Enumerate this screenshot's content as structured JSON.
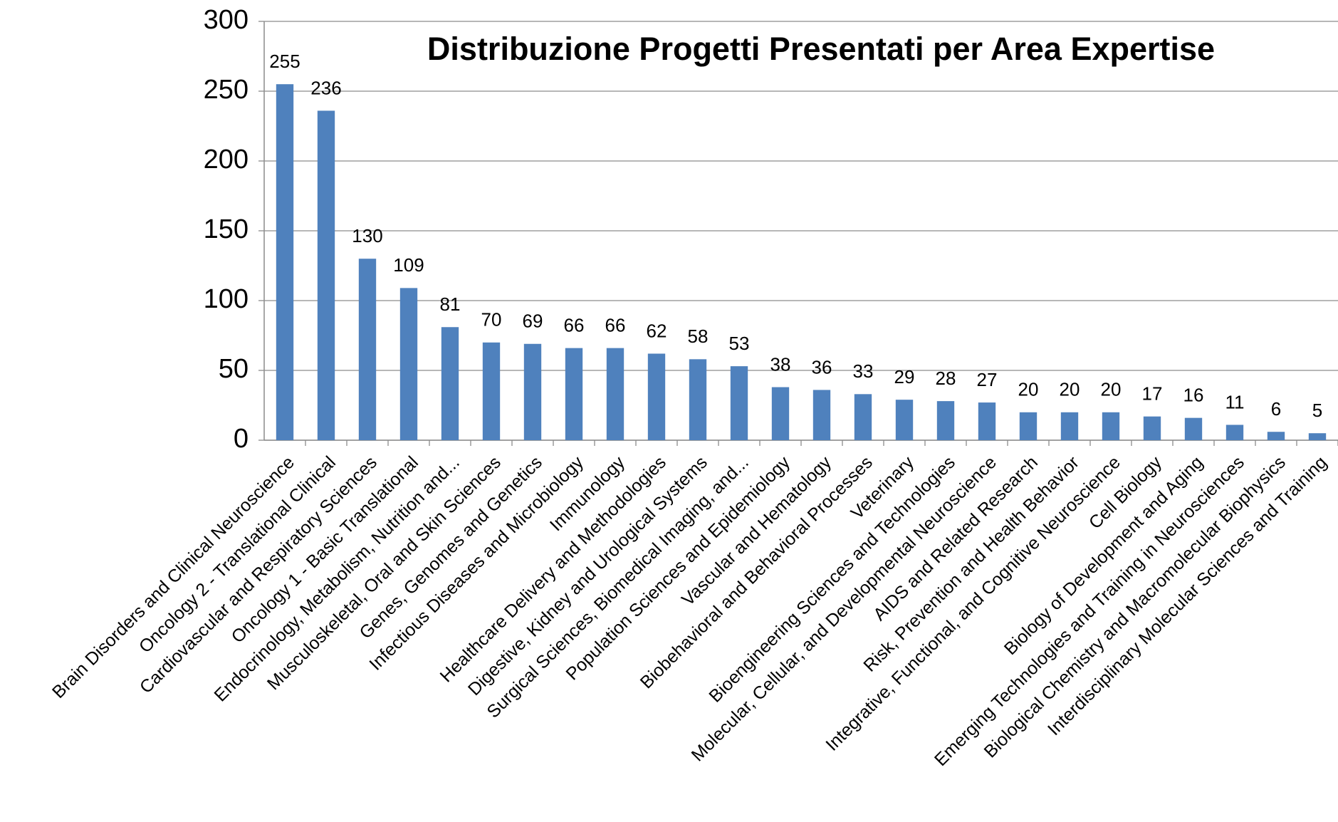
{
  "chart_data": {
    "type": "bar",
    "title": "Distribuzione Progetti Presentati per Area Expertise",
    "categories": [
      "Brain Disorders and Clinical Neuroscience",
      "Oncology 2 - Translational Clinical",
      "Cardiovascular and Respiratory Sciences",
      "Oncology 1 - Basic Translational",
      "Endocrinology, Metabolism, Nutrition and...",
      "Musculoskeletal, Oral and Skin Sciences",
      "Genes, Genomes and Genetics",
      "Infectious Diseases and Microbiology",
      "Immunology",
      "Healthcare Delivery and Methodologies",
      "Digestive, Kidney and Urological Systems",
      "Surgical Sciences, Biomedical Imaging, and...",
      "Population Sciences and Epidemiology",
      "Vascular and Hematology",
      "Biobehavioral and Behavioral Processes",
      "Veterinary",
      "Bioengineering Sciences and Technologies",
      "Molecular, Cellular, and Developmental Neuroscience",
      "AIDS and Related Research",
      "Risk, Prevention and Health Behavior",
      "Integrative, Functional, and Cognitive Neuroscience",
      "Cell Biology",
      "Biology of Development and Aging",
      "Emerging Technologies and Training in Neurosciences",
      "Biological Chemistry and Macromolecular Biophysics",
      "Interdisciplinary Molecular Sciences and Training"
    ],
    "values": [
      255,
      236,
      130,
      109,
      81,
      70,
      69,
      66,
      66,
      62,
      58,
      53,
      38,
      36,
      33,
      29,
      28,
      27,
      20,
      20,
      20,
      17,
      16,
      11,
      6,
      5
    ],
    "color": "#4f81bd",
    "ylim": [
      0,
      300
    ],
    "yticks": [
      0,
      50,
      100,
      150,
      200,
      250,
      300
    ],
    "grid": true
  }
}
